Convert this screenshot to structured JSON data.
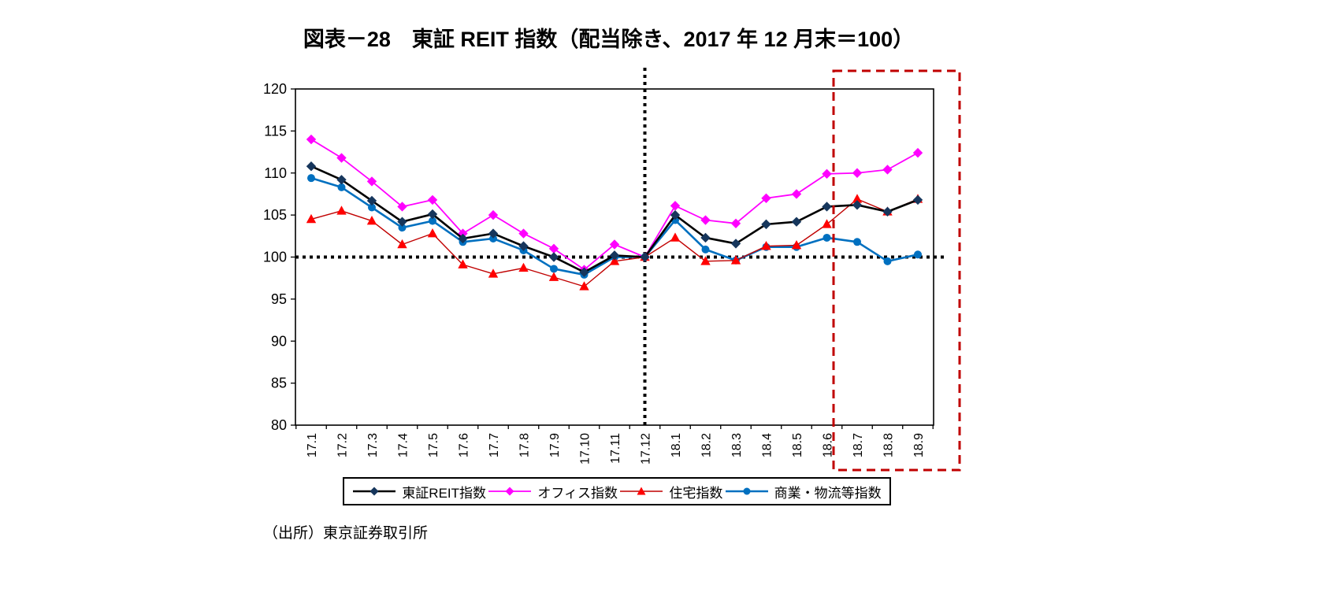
{
  "title": "図表－28　東証 REIT 指数（配当除き、2017 年 12 月末＝100）",
  "source": "（出所）東京証券取引所",
  "chart_data": {
    "type": "line",
    "title": "図表－28　東証 REIT 指数（配当除き、2017 年 12 月末＝100）",
    "xlabel": "",
    "ylabel": "",
    "ylim": [
      80,
      120
    ],
    "yticks": [
      80,
      85,
      90,
      95,
      100,
      105,
      110,
      115,
      120
    ],
    "grid": false,
    "legend_position": "bottom",
    "categories": [
      "17.1",
      "17.2",
      "17.3",
      "17.4",
      "17.5",
      "17.6",
      "17.7",
      "17.8",
      "17.9",
      "17.10",
      "17.11",
      "17.12",
      "18.1",
      "18.2",
      "18.3",
      "18.4",
      "18.5",
      "18.6",
      "18.7",
      "18.8",
      "18.9"
    ],
    "series": [
      {
        "name": "東証REIT指数",
        "color": "#000000",
        "marker": "diamond",
        "marker_color": "#16365C",
        "values": [
          110.8,
          109.2,
          106.7,
          104.2,
          105.1,
          102.2,
          102.8,
          101.3,
          100.0,
          98.2,
          100.2,
          100.0,
          105.0,
          102.3,
          101.6,
          103.9,
          104.2,
          106.0,
          106.2,
          105.4,
          106.8
        ]
      },
      {
        "name": "オフィス指数",
        "color": "#FF00FF",
        "marker": "diamond",
        "marker_color": "#FF00FF",
        "values": [
          114.0,
          111.8,
          109.0,
          106.0,
          106.8,
          102.8,
          105.0,
          102.8,
          101.0,
          98.5,
          101.5,
          100.0,
          106.1,
          104.4,
          104.0,
          107.0,
          107.5,
          109.9,
          110.0,
          110.4,
          112.4
        ]
      },
      {
        "name": "住宅指数",
        "color": "#C00000",
        "marker": "triangle",
        "marker_color": "#FF0000",
        "values": [
          104.5,
          105.5,
          104.3,
          101.5,
          102.8,
          99.1,
          98.0,
          98.7,
          97.6,
          96.5,
          99.5,
          100.0,
          102.3,
          99.5,
          99.6,
          101.3,
          101.4,
          103.9,
          106.9,
          105.4,
          106.9
        ]
      },
      {
        "name": "商業・物流等指数",
        "color": "#0070C0",
        "marker": "circle",
        "marker_color": "#0070C0",
        "values": [
          109.4,
          108.3,
          105.9,
          103.5,
          104.3,
          101.8,
          102.2,
          100.8,
          98.6,
          97.9,
          100.0,
          100.0,
          104.4,
          100.9,
          99.6,
          101.2,
          101.2,
          102.3,
          101.8,
          99.5,
          100.3
        ]
      }
    ],
    "annotations": {
      "h_dotted_line_y": 100,
      "v_dotted_line_category": "17.12",
      "highlight_box": {
        "from_category": "18.7",
        "to_category": "18.9",
        "color": "#C00000",
        "style": "dashed"
      }
    }
  }
}
